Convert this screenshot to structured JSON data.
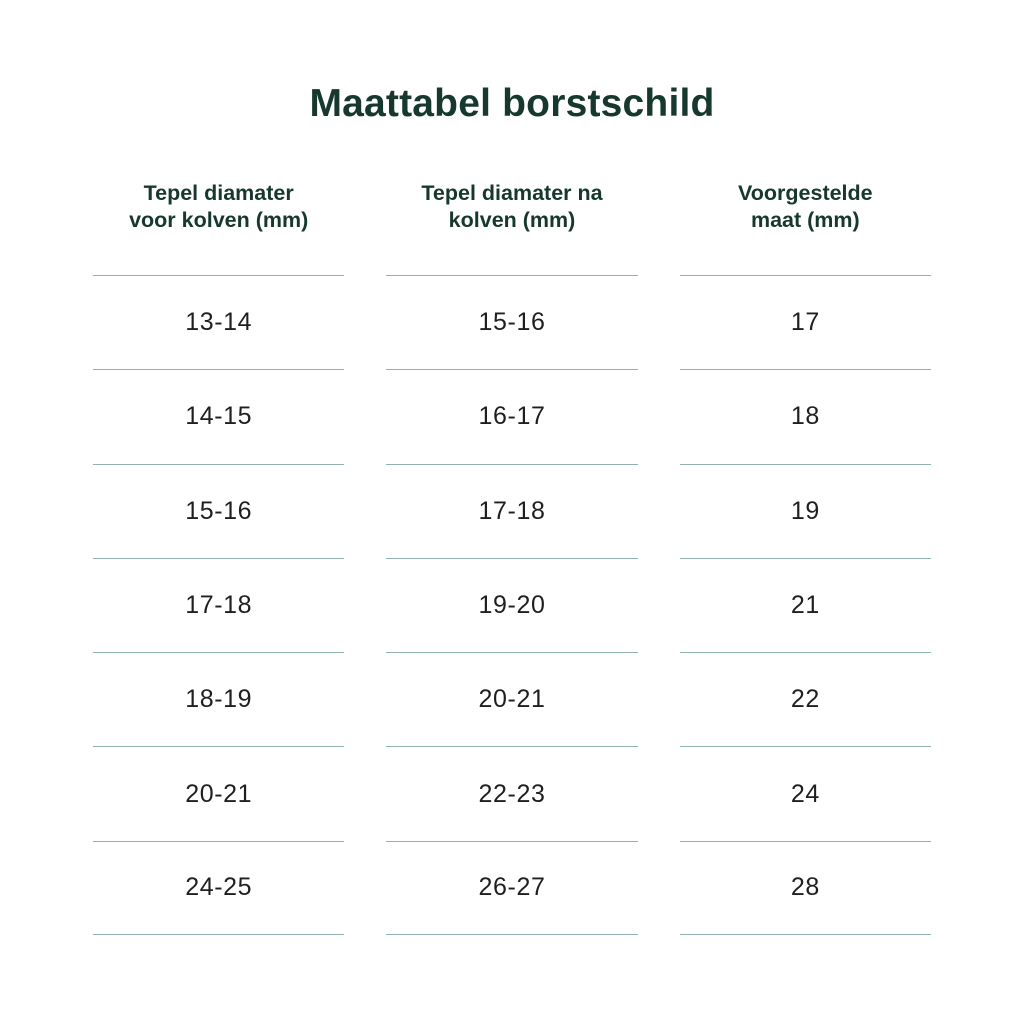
{
  "page": {
    "title": "Maattabel borstschild"
  },
  "colors": {
    "heading_green": "#17382e",
    "separator_teal": "#8fb1b0",
    "cell_text": "#1f1f1f",
    "background": "#ffffff"
  },
  "table": {
    "headers": [
      "Tepel diamater\nvoor kolven (mm)",
      "Tepel diamater na\nkolven (mm)",
      "Voorgestelde\nmaat (mm)"
    ],
    "rows": [
      [
        "13-14",
        "15-16",
        "17"
      ],
      [
        "14-15",
        "16-17",
        "18"
      ],
      [
        "15-16",
        "17-18",
        "19"
      ],
      [
        "17-18",
        "19-20",
        "21"
      ],
      [
        "18-19",
        "20-21",
        "22"
      ],
      [
        "20-21",
        "22-23",
        "24"
      ],
      [
        "24-25",
        "26-27",
        "28"
      ]
    ]
  },
  "chart_data": {
    "type": "table",
    "title": "Maattabel borstschild",
    "columns": [
      "Tepel diamater voor kolven (mm)",
      "Tepel diamater na kolven (mm)",
      "Voorgestelde maat (mm)"
    ],
    "rows": [
      [
        "13-14",
        "15-16",
        "17"
      ],
      [
        "14-15",
        "16-17",
        "18"
      ],
      [
        "15-16",
        "17-18",
        "19"
      ],
      [
        "17-18",
        "19-20",
        "21"
      ],
      [
        "18-19",
        "20-21",
        "22"
      ],
      [
        "20-21",
        "22-23",
        "24"
      ],
      [
        "24-25",
        "26-27",
        "28"
      ]
    ],
    "layout": {
      "grid": "horizontal separators only, per column",
      "legend": "none",
      "header_style": "bold dark green, two-line centered"
    }
  }
}
